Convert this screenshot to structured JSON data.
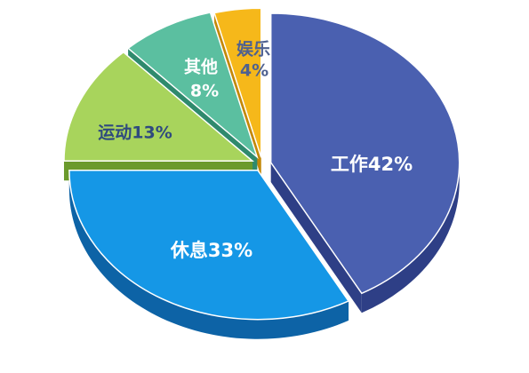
{
  "chart_data": {
    "type": "pie",
    "style": "3d-exploded",
    "title": "",
    "slices": [
      {
        "label": "工作",
        "value": 42,
        "text": "工作42%",
        "color": "#4a60b0",
        "side_color": "#2e3f86",
        "text_color": "#ffffff"
      },
      {
        "label": "休息",
        "value": 33,
        "text": "休息33%",
        "color": "#1597e6",
        "side_color": "#0d63a6",
        "text_color": "#ffffff"
      },
      {
        "label": "运动",
        "value": 13,
        "text": "运动13%",
        "color": "#a8d45c",
        "side_color": "#6b9a2c",
        "text_color": "#2f4a7e"
      },
      {
        "label": "其他",
        "value": 8,
        "text_line1": "其他",
        "text_line2": "8%",
        "color": "#5bbfa0",
        "side_color": "#2f8a6d",
        "text_color": "#ffffff"
      },
      {
        "label": "娱乐",
        "value": 4,
        "text_line1": "娱乐",
        "text_line2": "4%",
        "color": "#f6b81a",
        "side_color": "#c48808",
        "text_color": "#4f6190"
      }
    ]
  }
}
